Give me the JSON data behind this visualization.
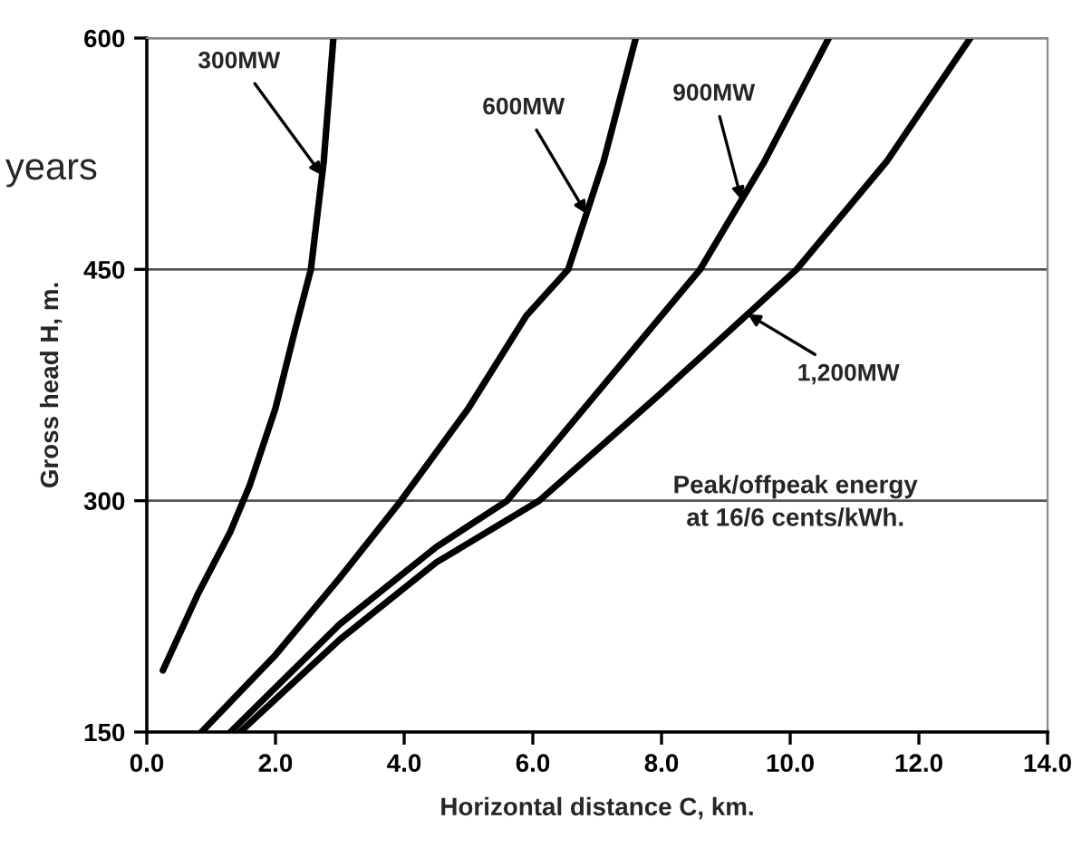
{
  "chart_data": {
    "type": "line",
    "xlabel": "Horizontal distance C, km.",
    "ylabel": "Gross head H, m.",
    "xlim": [
      0,
      14
    ],
    "ylim": [
      150,
      600
    ],
    "xticks": [
      {
        "value": 0,
        "label": "0.0"
      },
      {
        "value": 2,
        "label": "2.0"
      },
      {
        "value": 4,
        "label": "4.0"
      },
      {
        "value": 6,
        "label": "6.0"
      },
      {
        "value": 8,
        "label": "8.0"
      },
      {
        "value": 10,
        "label": "10.0"
      },
      {
        "value": 12,
        "label": "12.0"
      },
      {
        "value": 14,
        "label": "14.0"
      }
    ],
    "yticks": [
      150,
      300,
      450,
      600
    ],
    "grid": "y",
    "marker": "none",
    "line_style": "solid",
    "series": [
      {
        "name": "300MW",
        "color": "#000000",
        "x": [
          0.25,
          0.8,
          1.3,
          1.6,
          2.0,
          2.3,
          2.55,
          2.75,
          2.9
        ],
        "values": [
          190,
          240,
          280,
          310,
          360,
          410,
          450,
          520,
          600
        ]
      },
      {
        "name": "600MW",
        "color": "#000000",
        "x": [
          0.85,
          2.0,
          3.0,
          3.95,
          5.0,
          5.9,
          6.55,
          7.1,
          7.6
        ],
        "values": [
          150,
          200,
          250,
          300,
          360,
          420,
          450,
          520,
          600
        ]
      },
      {
        "name": "900MW",
        "color": "#000000",
        "x": [
          1.3,
          3.0,
          4.5,
          5.6,
          7.0,
          8.6,
          9.6,
          10.6
        ],
        "values": [
          150,
          220,
          270,
          300,
          370,
          450,
          520,
          600
        ]
      },
      {
        "name": "1,200MW",
        "color": "#000000",
        "x": [
          1.45,
          3.0,
          4.5,
          6.1,
          8.0,
          10.1,
          11.5,
          12.8
        ],
        "values": [
          150,
          210,
          260,
          300,
          370,
          450,
          520,
          600
        ]
      }
    ],
    "annotations": [
      "Peak/offpeak energy\nat 16/6 cents/kWh.",
      "years"
    ]
  }
}
